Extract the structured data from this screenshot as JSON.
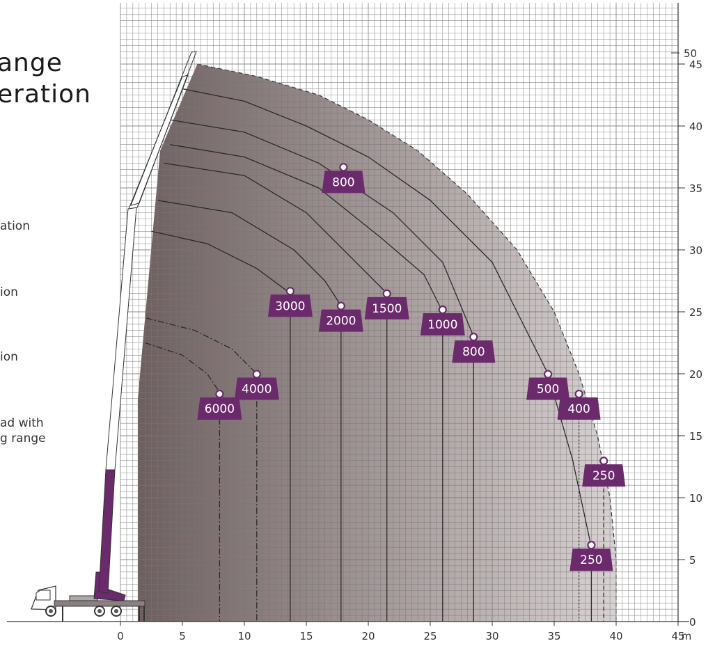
{
  "title_lines": [
    "ange",
    "eration"
  ],
  "legend_texts": [
    "ation",
    "ion",
    "ion",
    "ad with",
    "g range"
  ],
  "chart_data": {
    "type": "line",
    "x_unit": "m",
    "xlim": [
      -3,
      45
    ],
    "ylim": [
      0,
      50
    ],
    "x_ticks": [
      "0",
      "5",
      "10",
      "15",
      "20",
      "25",
      "30",
      "35",
      "40",
      "45"
    ],
    "y_ticks": [
      "0",
      "5",
      "10",
      "15",
      "20",
      "25",
      "30",
      "35",
      "40",
      "45",
      "50"
    ],
    "grid": true,
    "envelope": [
      [
        1.4,
        18
      ],
      [
        3.2,
        38
      ],
      [
        6.2,
        45
      ],
      [
        11,
        44
      ],
      [
        16,
        42.5
      ],
      [
        20,
        40.5
      ],
      [
        24,
        38
      ],
      [
        28,
        34.5
      ],
      [
        32,
        30
      ],
      [
        35,
        25
      ],
      [
        37,
        20
      ],
      [
        38.5,
        15
      ],
      [
        39.5,
        10
      ],
      [
        40,
        5
      ],
      [
        40,
        0
      ]
    ],
    "curves": [
      {
        "style": "solid",
        "points": [
          [
            5,
            43
          ],
          [
            10,
            42
          ],
          [
            15,
            40
          ],
          [
            20,
            37.5
          ],
          [
            25,
            34
          ],
          [
            30,
            29
          ],
          [
            34.5,
            20
          ],
          [
            36.5,
            13
          ],
          [
            38,
            6
          ],
          [
            38,
            0
          ]
        ]
      },
      {
        "style": "solid",
        "points": [
          [
            4,
            40.5
          ],
          [
            10,
            39.5
          ],
          [
            16,
            37
          ],
          [
            22,
            33
          ],
          [
            26,
            29
          ],
          [
            28.5,
            23
          ],
          [
            28.5,
            0
          ]
        ]
      },
      {
        "style": "solid",
        "points": [
          [
            4,
            38.5
          ],
          [
            10,
            37.5
          ],
          [
            16,
            35
          ],
          [
            21,
            31
          ],
          [
            24.5,
            28
          ],
          [
            26,
            25
          ],
          [
            26,
            0
          ]
        ]
      },
      {
        "style": "solid",
        "points": [
          [
            3.5,
            37
          ],
          [
            10,
            36
          ],
          [
            15,
            33
          ],
          [
            19,
            29
          ],
          [
            21.5,
            26.5
          ],
          [
            21.5,
            0
          ]
        ]
      },
      {
        "style": "solid",
        "points": [
          [
            3,
            34
          ],
          [
            9,
            33
          ],
          [
            14,
            30
          ],
          [
            16.5,
            27.5
          ],
          [
            17.8,
            25.5
          ],
          [
            17.8,
            0
          ]
        ]
      },
      {
        "style": "solid",
        "points": [
          [
            2.5,
            31.5
          ],
          [
            7,
            30.5
          ],
          [
            11,
            28.5
          ],
          [
            13.7,
            26.5
          ],
          [
            13.7,
            0
          ]
        ]
      },
      {
        "style": "dashdot",
        "points": [
          [
            2.1,
            24.5
          ],
          [
            6,
            23.5
          ],
          [
            9,
            22
          ],
          [
            11,
            20
          ],
          [
            11,
            0
          ]
        ]
      },
      {
        "style": "dashdot",
        "points": [
          [
            2,
            22.5
          ],
          [
            5,
            21.5
          ],
          [
            7,
            20
          ],
          [
            8,
            18.5
          ],
          [
            8,
            0
          ]
        ]
      },
      {
        "style": "dashed",
        "points": [
          [
            39,
            13
          ],
          [
            39,
            0
          ]
        ]
      },
      {
        "style": "dotted",
        "points": [
          [
            37,
            17.5
          ],
          [
            37,
            0
          ]
        ]
      }
    ],
    "loads": [
      {
        "label": "800",
        "x": 18,
        "y": 36.5
      },
      {
        "label": "3000",
        "x": 13.7,
        "y": 26.5
      },
      {
        "label": "2000",
        "x": 17.8,
        "y": 25.3
      },
      {
        "label": "1500",
        "x": 21.5,
        "y": 26.3
      },
      {
        "label": "1000",
        "x": 26,
        "y": 25
      },
      {
        "label": "800",
        "x": 28.5,
        "y": 22.8
      },
      {
        "label": "500",
        "x": 34.5,
        "y": 19.8
      },
      {
        "label": "400",
        "x": 37,
        "y": 18.2
      },
      {
        "label": "4000",
        "x": 11,
        "y": 19.8
      },
      {
        "label": "6000",
        "x": 8,
        "y": 18.2
      },
      {
        "label": "250",
        "x": 39,
        "y": 12.8
      },
      {
        "label": "250",
        "x": 38,
        "y": 6
      }
    ],
    "colors": {
      "accent": "#6b2a6b",
      "grid": "#777777",
      "curve": "#2a2a2a",
      "envelope_fill": "#9a8e8e"
    }
  }
}
